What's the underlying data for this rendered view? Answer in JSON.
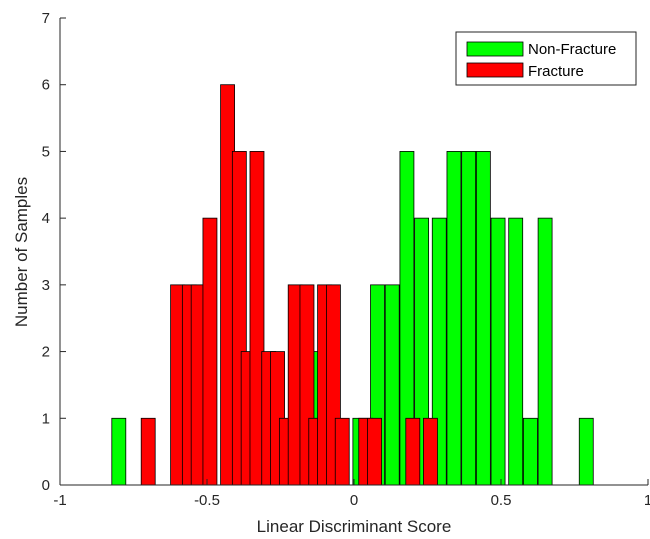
{
  "chart_data": {
    "type": "bar",
    "xlabel": "Linear Discriminant Score",
    "ylabel": "Number of Samples",
    "xlim": [
      -1,
      1
    ],
    "ylim": [
      0,
      7
    ],
    "xticks": [
      -1,
      -0.5,
      0,
      0.5,
      1
    ],
    "xtick_labels": [
      "-1",
      "-0.5",
      "0",
      "0.5",
      "1"
    ],
    "yticks": [
      0,
      1,
      2,
      3,
      4,
      5,
      6,
      7
    ],
    "ytick_labels": [
      "0",
      "1",
      "2",
      "3",
      "4",
      "5",
      "6",
      "7"
    ],
    "grid": false,
    "legend_position": "top-right",
    "series": [
      {
        "name": "Non-Fracture",
        "color": "#00ff00",
        "bins": [
          {
            "x": -0.8,
            "count": 1
          },
          {
            "x": -0.12,
            "count": 2
          },
          {
            "x": 0.02,
            "count": 1
          },
          {
            "x": 0.08,
            "count": 3
          },
          {
            "x": 0.13,
            "count": 3
          },
          {
            "x": 0.18,
            "count": 5
          },
          {
            "x": 0.23,
            "count": 4
          },
          {
            "x": 0.29,
            "count": 4
          },
          {
            "x": 0.34,
            "count": 5
          },
          {
            "x": 0.39,
            "count": 5
          },
          {
            "x": 0.44,
            "count": 5
          },
          {
            "x": 0.49,
            "count": 4
          },
          {
            "x": 0.55,
            "count": 4
          },
          {
            "x": 0.6,
            "count": 1
          },
          {
            "x": 0.65,
            "count": 4
          },
          {
            "x": 0.79,
            "count": 1
          }
        ]
      },
      {
        "name": "Fracture",
        "color": "#ff0000",
        "bins": [
          {
            "x": -0.7,
            "count": 1
          },
          {
            "x": -0.6,
            "count": 3
          },
          {
            "x": -0.56,
            "count": 3
          },
          {
            "x": -0.53,
            "count": 3
          },
          {
            "x": -0.49,
            "count": 4
          },
          {
            "x": -0.43,
            "count": 6
          },
          {
            "x": -0.39,
            "count": 5
          },
          {
            "x": -0.36,
            "count": 2
          },
          {
            "x": -0.33,
            "count": 5
          },
          {
            "x": -0.29,
            "count": 2
          },
          {
            "x": -0.26,
            "count": 2
          },
          {
            "x": -0.23,
            "count": 1
          },
          {
            "x": -0.2,
            "count": 3
          },
          {
            "x": -0.16,
            "count": 3
          },
          {
            "x": -0.13,
            "count": 1
          },
          {
            "x": -0.1,
            "count": 3
          },
          {
            "x": -0.07,
            "count": 3
          },
          {
            "x": -0.04,
            "count": 1
          },
          {
            "x": 0.04,
            "count": 1
          },
          {
            "x": 0.07,
            "count": 1
          },
          {
            "x": 0.2,
            "count": 1
          },
          {
            "x": 0.26,
            "count": 1
          }
        ]
      }
    ]
  }
}
